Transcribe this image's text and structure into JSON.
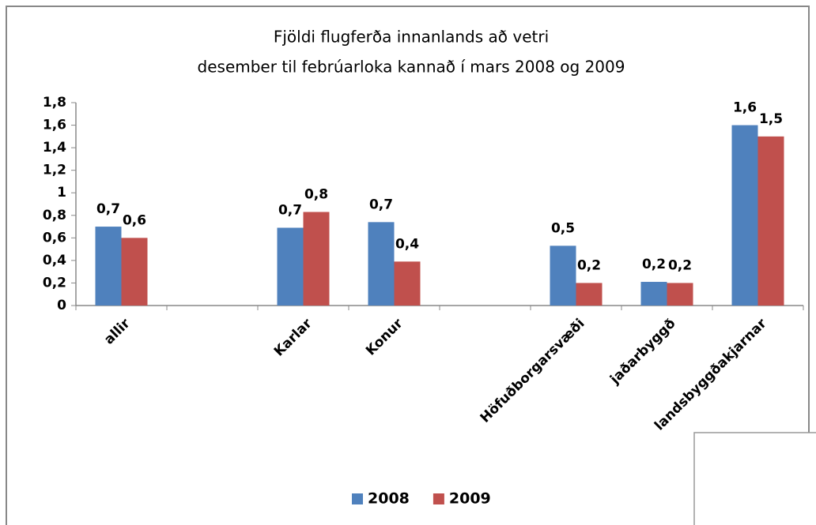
{
  "chart_data": {
    "type": "bar",
    "title": "Fjöldi flugferða innanlands  að vetri",
    "subtitle": "desember til febrúarloka    kannað í mars 2008 og 2009",
    "categories": [
      "allir",
      null,
      "Karlar",
      "Konur",
      null,
      "Höfuðborgarsvæði",
      "jaðarbyggð",
      "landsbyggðakjarnar"
    ],
    "series": [
      {
        "name": "2008",
        "color": "#4f81bd",
        "values": [
          0.7,
          null,
          0.69,
          0.74,
          null,
          0.53,
          0.21,
          1.6
        ],
        "value_labels": [
          "0,7",
          null,
          "0,7",
          "0,7",
          null,
          "0,5",
          "0,2",
          "1,6"
        ]
      },
      {
        "name": "2009",
        "color": "#c0504d",
        "values": [
          0.6,
          null,
          0.83,
          0.39,
          null,
          0.2,
          0.2,
          1.5
        ],
        "value_labels": [
          "0,6",
          null,
          "0,8",
          "0,4",
          null,
          "0,2",
          "0,2",
          "1,5"
        ]
      }
    ],
    "ylim": [
      0,
      1.8
    ],
    "yticks": [
      0,
      {
        "value": 0.2,
        "label": "0,2"
      },
      {
        "value": 0.4,
        "label": "0,4"
      },
      {
        "value": 0.6,
        "label": "0,6"
      },
      {
        "value": 0.8,
        "label": "0,8"
      },
      1,
      {
        "value": 1.2,
        "label": "1,2"
      },
      {
        "value": 1.4,
        "label": "1,4"
      },
      {
        "value": 1.6,
        "label": "1,6"
      },
      {
        "value": 1.8,
        "label": "1,8"
      }
    ],
    "grid": false,
    "legend": "bottom"
  }
}
